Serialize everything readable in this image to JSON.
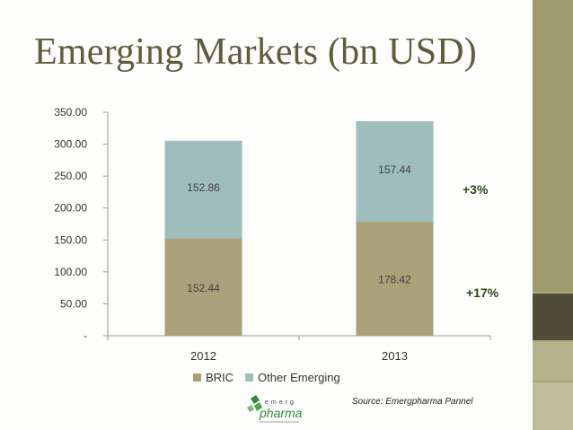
{
  "title": "Emerging Markets (bn USD)",
  "annotations": {
    "bric_other_change": "+3%",
    "bric_change": "+17%"
  },
  "source": "Source: Emergpharma Pannel",
  "logo": {
    "icon": "emergpharma-logo",
    "text": "emerg pharma"
  },
  "colors": {
    "bric": "#a8a17a",
    "other": "#9ebdbc",
    "title": "#5e5b3e",
    "annotation": "#2a4a1c"
  },
  "chart_data": {
    "type": "bar",
    "stacked": true,
    "categories": [
      "2012",
      "2013"
    ],
    "series": [
      {
        "name": "BRIC",
        "values": [
          152.44,
          178.42
        ],
        "labels": [
          "152.44",
          "178.42"
        ]
      },
      {
        "name": "Other Emerging",
        "values": [
          152.86,
          157.44
        ],
        "labels": [
          "152.86",
          "157.44"
        ]
      }
    ],
    "yticks": [
      "-",
      "50.00",
      "100.00",
      "150.00",
      "200.00",
      "250.00",
      "300.00",
      "350.00"
    ],
    "ylim": [
      0,
      350
    ],
    "legend": "bottom",
    "grid": false
  }
}
